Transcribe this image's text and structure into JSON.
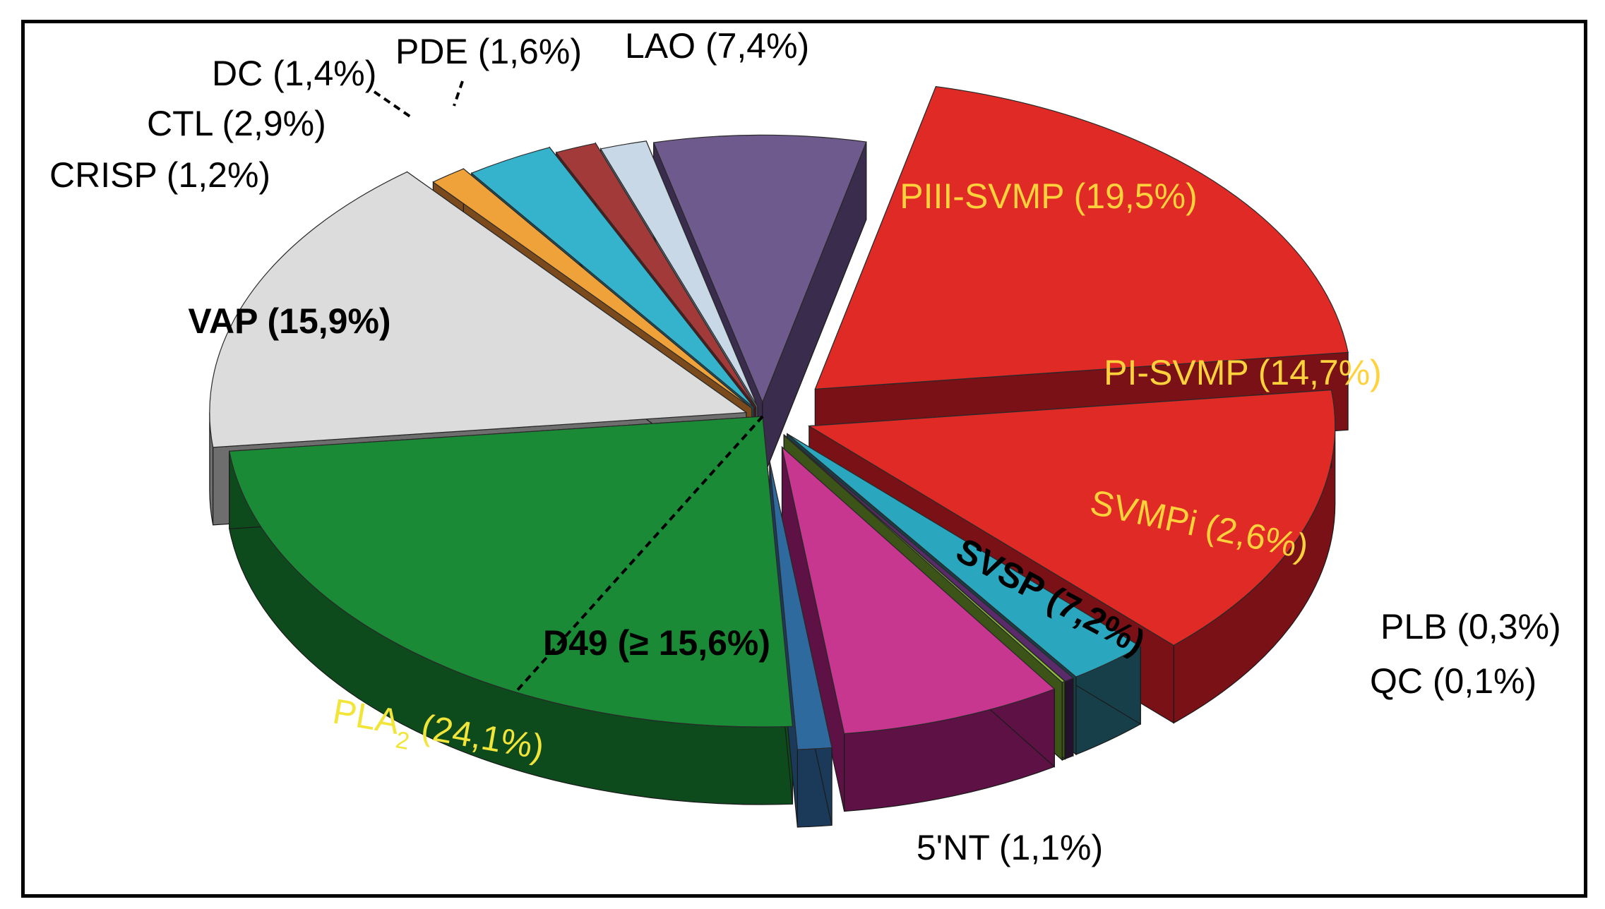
{
  "chart_data": {
    "type": "pie",
    "style": "3d-exploded",
    "title": "",
    "slices": [
      {
        "key": "piii",
        "name": "PIII-SVMP",
        "label": "PIII-SVMP (19,5%)",
        "value": 19.5,
        "color": "#e02a26",
        "side_color": "#7a1117",
        "label_color": "#ffd23c"
      },
      {
        "key": "pi",
        "name": "PI-SVMP",
        "label": "PI-SVMP (14,7%)",
        "value": 14.7,
        "color": "#e02a26",
        "side_color": "#7a1117",
        "label_color": "#ffd23c"
      },
      {
        "key": "svmpi",
        "name": "SVMPi",
        "label": "SVMPi (2,6%)",
        "value": 2.6,
        "color": "#2aa7be",
        "side_color": "#173f4a",
        "label_color": "#ffd23c"
      },
      {
        "key": "plb",
        "name": "PLB",
        "label": "PLB (0,3%)",
        "value": 0.3,
        "color": "#5a2b6a",
        "side_color": "#25112d",
        "label_color": "#000000"
      },
      {
        "key": "qc",
        "name": "QC",
        "label": "QC (0,1%)",
        "value": 0.1,
        "color": "#8fbf3c",
        "side_color": "#3d5418",
        "label_color": "#000000"
      },
      {
        "key": "svsp",
        "name": "SVSP",
        "label": "SVSP (7,2%)",
        "value": 7.2,
        "color": "#c7368f",
        "side_color": "#5e1144",
        "label_color": "#000000"
      },
      {
        "key": "nt",
        "name": "5'NT",
        "label": "5'NT (1,1%)",
        "value": 1.1,
        "color": "#2e6a9e",
        "side_color": "#1b3a5a",
        "label_color": "#000000"
      },
      {
        "key": "pla2",
        "name": "PLA2",
        "label_main": "PLA",
        "label_sub": "2",
        "label_rest": " (24,1%)",
        "value": 24.1,
        "color": "#1a8a36",
        "side_color": "#0d4a1c",
        "label_color": "#f2e53a"
      },
      {
        "key": "vap",
        "name": "VAP",
        "label": "VAP (15,9%)",
        "value": 15.9,
        "color": "#dcdcdc",
        "side_color": "#6e6e6e",
        "label_color": "#000000"
      },
      {
        "key": "crisp",
        "name": "CRISP",
        "label": "CRISP (1,2%)",
        "value": 1.2,
        "color": "#f0a23a",
        "side_color": "#7a4a1c",
        "label_color": "#000000"
      },
      {
        "key": "ctl",
        "name": "CTL",
        "label": "CTL (2,9%)",
        "value": 2.9,
        "color": "#35b2cc",
        "side_color": "#1a5a68",
        "label_color": "#000000"
      },
      {
        "key": "dc",
        "name": "DC",
        "label": "DC (1,4%)",
        "value": 1.4,
        "color": "#a33a3a",
        "side_color": "#5a1a1a",
        "label_color": "#000000"
      },
      {
        "key": "pde",
        "name": "PDE",
        "label": "PDE (1,6%)",
        "value": 1.6,
        "color": "#c9d8e6",
        "side_color": "#6a7a88",
        "label_color": "#000000"
      },
      {
        "key": "lao",
        "name": "LAO",
        "label": "LAO (7,4%)",
        "value": 7.4,
        "color": "#6e5a8c",
        "side_color": "#3a2c4c",
        "label_color": "#000000"
      }
    ],
    "annotations": [
      {
        "key": "d49",
        "label": "D49 (≥ 15,6%)",
        "value_min": 15.6,
        "parent": "PLA2",
        "label_color": "#000000"
      }
    ]
  }
}
